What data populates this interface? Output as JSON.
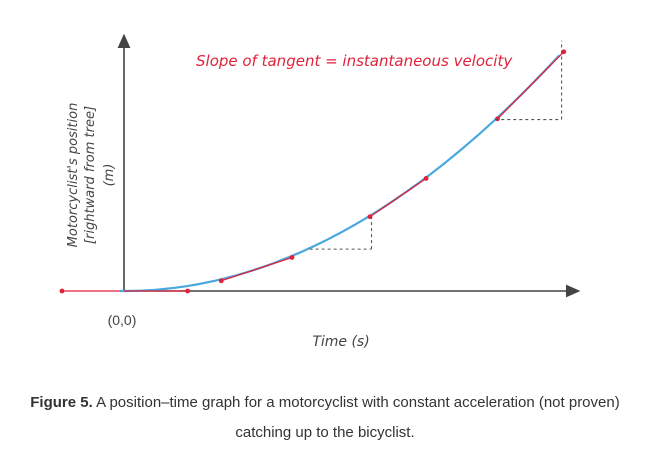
{
  "chart_data": {
    "type": "line",
    "annotation": "Slope of tangent = instantaneous velocity",
    "ylabel": [
      "Motorcyclist's position",
      "[rightward from tree]",
      "(m)"
    ],
    "xlabel": "Time (s)",
    "origin_label": "(0,0)",
    "curve": "position = k·t² (constant acceleration), starting at rest at the origin",
    "tangent_points_t": [
      0.3,
      0.62,
      0.92
    ],
    "x_range": [
      -0.22,
      1.06
    ],
    "y_range": [
      0,
      1.08
    ]
  },
  "caption": {
    "label": "Figure 5.",
    "text_line1": " A position–time graph for a motorcyclist with constant acceleration (not proven)",
    "text_line2": "catching up to the bicyclist."
  },
  "colors": {
    "curve": "#4aa8e0",
    "tangent": "#e0223a",
    "axis": "#444444",
    "annotation": "#e0223a",
    "text": "#333333"
  }
}
